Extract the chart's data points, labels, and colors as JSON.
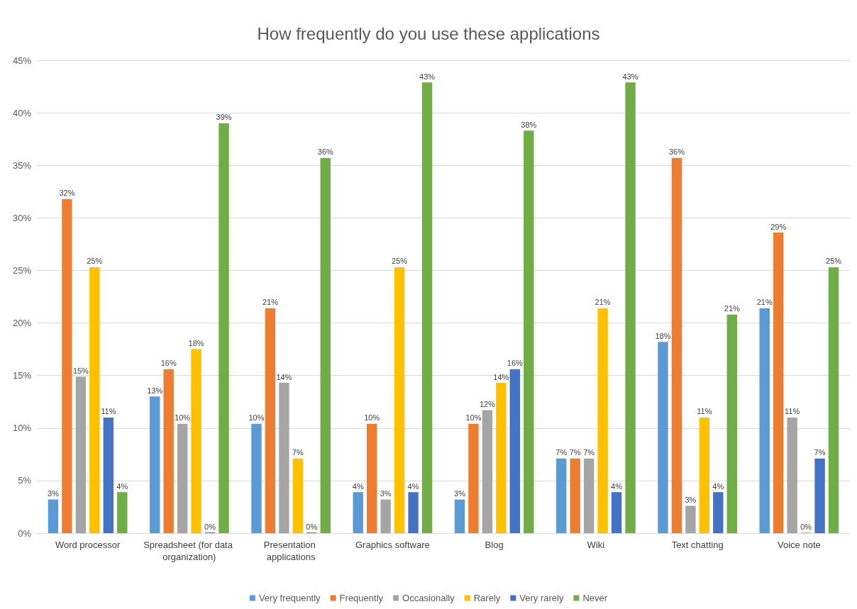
{
  "chart_data": {
    "type": "bar",
    "title": "How frequently do you use these applications",
    "categories": [
      "Word processor",
      "Spreadsheet (for data organization)",
      "Presentation applications",
      "Graphics software",
      "Blog",
      "Wiki",
      "Text chatting",
      "Voice note"
    ],
    "series": [
      {
        "name": "Very frequently",
        "color": "#5b9bd5",
        "values": [
          3.2,
          13.0,
          10.4,
          3.9,
          3.2,
          7.1,
          18.2,
          21.4
        ],
        "value_labels": [
          "3%",
          "13%",
          "10%",
          "4%",
          "3%",
          "7%",
          "18%",
          "21%"
        ]
      },
      {
        "name": "Frequently",
        "color": "#ed7d31",
        "values": [
          31.8,
          15.6,
          21.4,
          10.4,
          10.4,
          7.1,
          35.7,
          28.6
        ],
        "value_labels": [
          "32%",
          "16%",
          "21%",
          "10%",
          "10%",
          "7%",
          "36%",
          "29%"
        ]
      },
      {
        "name": "Occasionally",
        "color": "#a5a5a5",
        "values": [
          14.9,
          10.4,
          14.3,
          3.2,
          11.7,
          7.1,
          2.6,
          11.0
        ],
        "value_labels": [
          "15%",
          "10%",
          "14%",
          "3%",
          "12%",
          "7%",
          "3%",
          "11%"
        ]
      },
      {
        "name": "Rarely",
        "color": "#ffc000",
        "values": [
          25.3,
          17.5,
          7.1,
          25.3,
          14.3,
          21.4,
          11.0,
          0
        ],
        "value_labels": [
          "25%",
          "18%",
          "7%",
          "25%",
          "14%",
          "21%",
          "11%",
          "0%"
        ]
      },
      {
        "name": "Very rarely",
        "color": "#4472c4",
        "values": [
          11.0,
          0,
          0,
          3.9,
          15.6,
          3.9,
          3.9,
          7.1
        ],
        "value_labels": [
          "11%",
          "0%",
          "0%",
          "4%",
          "16%",
          "4%",
          "4%",
          "7%"
        ]
      },
      {
        "name": "Never",
        "color": "#70ad47",
        "values": [
          3.9,
          39.0,
          35.7,
          42.9,
          38.3,
          42.9,
          20.8,
          25.3
        ],
        "value_labels": [
          "4%",
          "39%",
          "36%",
          "43%",
          "38%",
          "43%",
          "21%",
          "25%"
        ]
      }
    ],
    "ylim": [
      0,
      45
    ],
    "yticks": [
      {
        "value": 0,
        "label": "0%"
      },
      {
        "value": 5,
        "label": "5%"
      },
      {
        "value": 10,
        "label": "10%"
      },
      {
        "value": 15,
        "label": "15%"
      },
      {
        "value": 20,
        "label": "20%"
      },
      {
        "value": 25,
        "label": "25%"
      },
      {
        "value": 30,
        "label": "30%"
      },
      {
        "value": 35,
        "label": "35%"
      },
      {
        "value": 40,
        "label": "40%"
      },
      {
        "value": 45,
        "label": "45%"
      }
    ],
    "grid": "y",
    "legend": "bottom"
  }
}
